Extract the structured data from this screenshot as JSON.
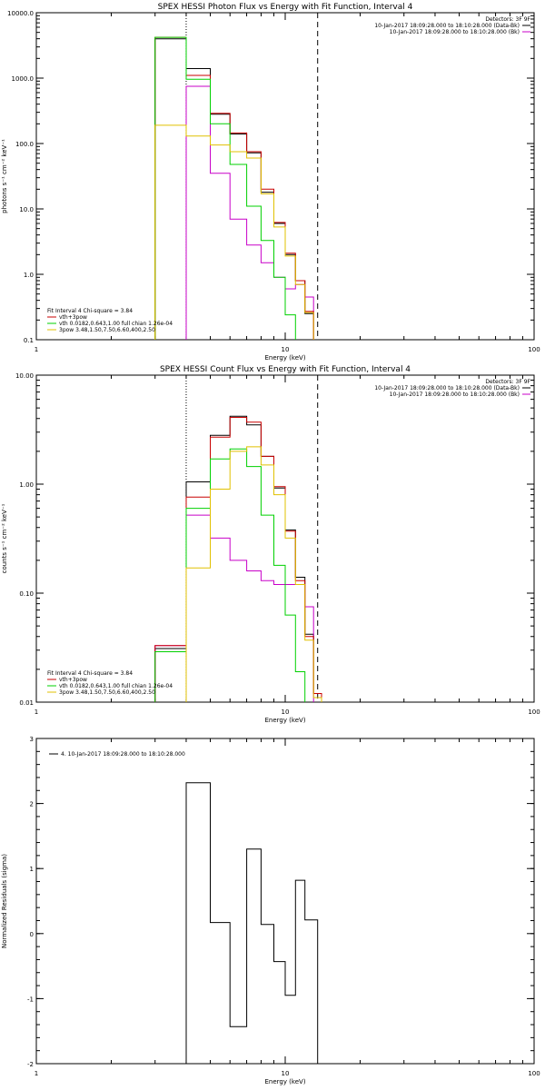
{
  "colors": {
    "data": "#000000",
    "background": "#ffe0e0",
    "fit_total": "#c80000",
    "fit_thermal": "#00d000",
    "fit_nonthermal": "#e0c000",
    "residual": "#000000",
    "panel_bg": "#ffffff"
  },
  "chart_data": [
    {
      "type": "line",
      "title": "SPEX HESSI Photon Flux vs Energy with Fit Function, Interval 4",
      "xlabel": "Energy (keV)",
      "ylabel": "photons s⁻¹ cm⁻² keV⁻¹",
      "xscale": "log",
      "yscale": "log",
      "xlim": [
        1,
        100
      ],
      "ylim": [
        0.1,
        10000
      ],
      "xticks": [
        1,
        10,
        100
      ],
      "xticklabels": [
        "1",
        "10",
        "100"
      ],
      "yticks": [
        0.1,
        1,
        10,
        100,
        1000,
        10000
      ],
      "yticklabels": [
        "0.1",
        "1.0",
        "10.0",
        "100.0",
        "1000.0",
        "10000.0"
      ],
      "fit_range": [
        4.0,
        13.5
      ],
      "legend_header": [
        "Detectors: 3F 9F"
      ],
      "legend": [
        {
          "text": "10-Jan-2017 18:09:28.000 to 18:10:28.000 (Data-Bk)",
          "color": "#000000"
        },
        {
          "text": "10-Jan-2017 18:09:28.000 to 18:10:28.000 (Bk)",
          "color": "#c800c8"
        }
      ],
      "fit_legend": {
        "title": "Fit Interval  4   Chi-square = 3.84",
        "items": [
          {
            "text": "vth+3pow",
            "color": "#c80000"
          },
          {
            "text": "vth 0.0182,0.643,1.00  full chian 1.26e-04",
            "color": "#00d000"
          },
          {
            "text": "3pow 3.48,1.50,7.50,6.60,400,2.50",
            "color": "#e0c000"
          }
        ]
      },
      "edges": [
        3,
        4,
        5,
        6,
        7,
        8,
        9,
        10,
        11,
        12,
        13,
        14,
        15
      ],
      "series": [
        {
          "name": "Data-Bk",
          "color": "#000000",
          "values": [
            4000,
            1400,
            280,
            140,
            72,
            18,
            6,
            2,
            0.8,
            0.25,
            null,
            null
          ]
        },
        {
          "name": "Bk",
          "color": "#c800c8",
          "values": [
            null,
            750,
            35,
            7,
            2.8,
            1.5,
            0.9,
            0.6,
            0.7,
            0.45,
            null,
            null
          ]
        },
        {
          "name": "vth+3pow",
          "color": "#c80000",
          "values": [
            4200,
            1100,
            290,
            145,
            75,
            20,
            6.2,
            2.1,
            0.8,
            0.27,
            null,
            null
          ]
        },
        {
          "name": "vth",
          "color": "#00d000",
          "values": [
            4200,
            960,
            200,
            48,
            11,
            3.3,
            0.9,
            0.24,
            null,
            null,
            null,
            null
          ]
        },
        {
          "name": "3pow",
          "color": "#e0c000",
          "values": [
            190,
            130,
            95,
            75,
            60,
            17,
            5.3,
            1.9,
            0.7,
            0.26,
            null,
            null
          ]
        }
      ]
    },
    {
      "type": "line",
      "title": "SPEX HESSI Count Flux vs Energy with Fit Function, Interval 4",
      "xlabel": "Energy (keV)",
      "ylabel": "counts s⁻¹ cm⁻² keV⁻¹",
      "xscale": "log",
      "yscale": "log",
      "xlim": [
        1,
        100
      ],
      "ylim": [
        0.01,
        10
      ],
      "xticks": [
        1,
        10,
        100
      ],
      "xticklabels": [
        "1",
        "10",
        "100"
      ],
      "yticks": [
        0.01,
        0.1,
        1,
        10
      ],
      "yticklabels": [
        "0.01",
        "0.10",
        "1.00",
        "10.00"
      ],
      "fit_range": [
        4.0,
        13.5
      ],
      "legend_header": [
        "Detectors: 3F 9F"
      ],
      "legend": [
        {
          "text": "10-Jan-2017 18:09:28.000 to 18:10:28.000 (Data-Bk)",
          "color": "#000000"
        },
        {
          "text": "10-Jan-2017 18:09:28.000 to 18:10:28.000 (Bk)",
          "color": "#c800c8"
        }
      ],
      "fit_legend": {
        "title": "Fit Interval  4   Chi-square = 3.84",
        "items": [
          {
            "text": "vth+3pow",
            "color": "#c80000"
          },
          {
            "text": "vth 0.0182,0.643,1.00  full chian 1.26e-04",
            "color": "#00d000"
          },
          {
            "text": "3pow 3.48,1.50,7.50,6.60,400,2.50",
            "color": "#e0c000"
          }
        ]
      },
      "edges": [
        3,
        4,
        5,
        6,
        7,
        8,
        9,
        10,
        11,
        12,
        13,
        14,
        15
      ],
      "series": [
        {
          "name": "Data-Bk",
          "color": "#000000",
          "values": [
            0.031,
            1.05,
            2.8,
            4.2,
            3.5,
            1.8,
            0.92,
            0.38,
            0.14,
            0.042,
            0.012,
            null
          ]
        },
        {
          "name": "Bk",
          "color": "#c800c8",
          "values": [
            0.033,
            0.52,
            0.32,
            0.2,
            0.16,
            0.13,
            0.12,
            0.12,
            0.12,
            0.075,
            null,
            null
          ]
        },
        {
          "name": "vth+3pow",
          "color": "#c80000",
          "values": [
            0.033,
            0.76,
            2.7,
            4.1,
            3.7,
            1.8,
            0.95,
            0.37,
            0.13,
            0.04,
            0.012,
            null
          ]
        },
        {
          "name": "vth",
          "color": "#00d000",
          "values": [
            0.029,
            0.6,
            1.7,
            2.1,
            1.45,
            0.52,
            0.18,
            0.063,
            0.019,
            null,
            null,
            null
          ]
        },
        {
          "name": "3pow",
          "color": "#e0c000",
          "values": [
            null,
            0.17,
            0.9,
            2.0,
            2.2,
            1.5,
            0.8,
            0.32,
            0.12,
            0.037,
            0.011,
            null
          ]
        }
      ]
    },
    {
      "type": "line",
      "title": "",
      "xlabel": "Energy (keV)",
      "ylabel": "Normalized Residuals (sigma)",
      "xscale": "log",
      "yscale": "linear",
      "xlim": [
        1,
        100
      ],
      "ylim": [
        -2,
        3
      ],
      "xticks": [
        1,
        10,
        100
      ],
      "xticklabels": [
        "1",
        "10",
        "100"
      ],
      "yticks": [
        -2,
        -1,
        0,
        1,
        2,
        3
      ],
      "yticklabels": [
        "-2",
        "-1",
        "0",
        "1",
        "2",
        "3"
      ],
      "legend": [
        {
          "text": "4. 10-Jan-2017 18:09:28.000 to 18:10:28.000",
          "color": "#000000"
        }
      ],
      "edges": [
        4,
        5,
        6,
        7,
        8,
        9,
        10,
        11,
        12,
        13.5
      ],
      "series": [
        {
          "name": "residuals",
          "color": "#000000",
          "values": [
            2.32,
            0.17,
            -1.43,
            1.3,
            0.14,
            -0.43,
            -0.95,
            0.82,
            0.21
          ]
        }
      ]
    }
  ]
}
